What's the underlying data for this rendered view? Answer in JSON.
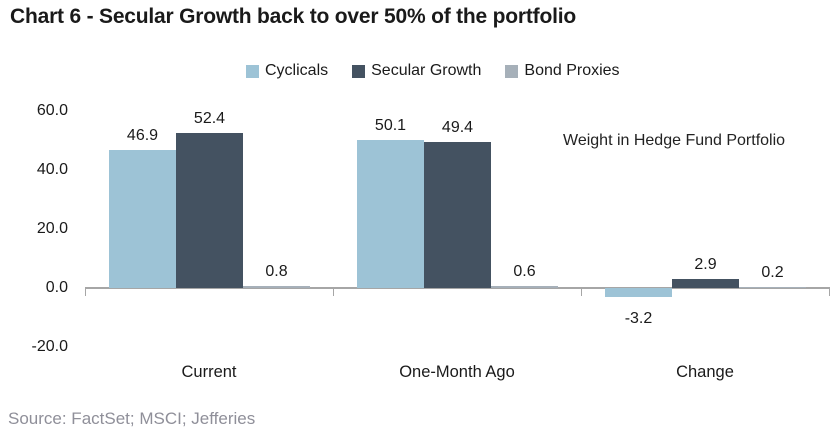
{
  "title": "Chart 6 - Secular Growth back to over 50% of the portfolio",
  "source_note": "Source: FactSet; MSCI; Jefferies",
  "colors": {
    "cyclicals": "#9DC3D6",
    "secular_growth": "#445261",
    "bond_proxies": "#A6B0B9",
    "axis": "#A6A6A6",
    "title_text": "#1A1A1A",
    "source_text": "#8F8F99"
  },
  "chart_data": {
    "type": "bar",
    "title": "Chart 6 - Secular Growth back to over 50% of the portfolio",
    "annotation": "Weight in Hedge Fund Portfolio",
    "categories": [
      "Current",
      "One-Month Ago",
      "Change"
    ],
    "series": [
      {
        "name": "Cyclicals",
        "color": "#9DC3D6",
        "values": [
          46.9,
          50.1,
          -3.2
        ]
      },
      {
        "name": "Secular Growth",
        "color": "#445261",
        "values": [
          52.4,
          49.4,
          2.9
        ]
      },
      {
        "name": "Bond Proxies",
        "color": "#A6B0B9",
        "values": [
          0.8,
          0.6,
          0.2
        ]
      }
    ],
    "yticks": [
      60.0,
      40.0,
      20.0,
      0.0,
      -20.0
    ],
    "ylim": [
      -20,
      70
    ],
    "xlabel": "",
    "ylabel": "",
    "grid": false,
    "legend_position": "top",
    "value_labels": true,
    "value_label_format": "one_decimal"
  }
}
